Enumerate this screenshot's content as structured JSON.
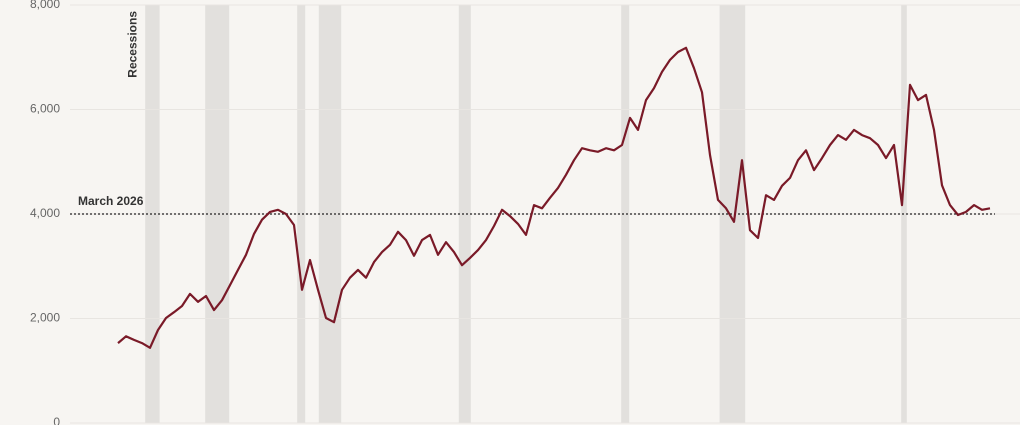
{
  "chart_data": {
    "type": "line",
    "categories": [
      null,
      null,
      null,
      null,
      null,
      null,
      null,
      null,
      null,
      null,
      null,
      null,
      null,
      null,
      null,
      null,
      null,
      null,
      null,
      null,
      null,
      null,
      null,
      null,
      null,
      null,
      null,
      null,
      null,
      null,
      null,
      null,
      null,
      null,
      null,
      null,
      null,
      null,
      null,
      null,
      null,
      null,
      null,
      null,
      null,
      null,
      null,
      null,
      null,
      null,
      null,
      null,
      null,
      null,
      null,
      null,
      null,
      null,
      null,
      null,
      null,
      null,
      null,
      null,
      null,
      null,
      null,
      null,
      null,
      null,
      null,
      null,
      null,
      null,
      null,
      null,
      null,
      null,
      null,
      null,
      null,
      null,
      null,
      null,
      null,
      null,
      null,
      null,
      null,
      null,
      null,
      null,
      null,
      null,
      null,
      null,
      null,
      null,
      null,
      null,
      null,
      null,
      null,
      null,
      null,
      null,
      null,
      null,
      null,
      null,
      null,
      null,
      null,
      null,
      null,
      null
    ],
    "series": [
      {
        "color": "#7a1a28",
        "values": [
          null,
          null,
          null,
          null,
          null,
          null,
          1530,
          1660,
          1590,
          1530,
          1440,
          1780,
          2010,
          2120,
          2240,
          2470,
          2320,
          2430,
          2160,
          2350,
          2640,
          2930,
          3220,
          3620,
          3890,
          4040,
          4080,
          4000,
          3790,
          2550,
          3120,
          2550,
          2010,
          1930,
          2550,
          2780,
          2930,
          2780,
          3080,
          3270,
          3410,
          3660,
          3500,
          3200,
          3500,
          3600,
          3220,
          3460,
          3270,
          3020,
          3160,
          3310,
          3500,
          3770,
          4080,
          3960,
          3810,
          3600,
          4170,
          4110,
          4310,
          4500,
          4750,
          5030,
          5260,
          5220,
          5190,
          5260,
          5220,
          5320,
          5840,
          5610,
          6180,
          6410,
          6720,
          6950,
          7100,
          7180,
          6790,
          6330,
          5130,
          4270,
          4110,
          3850,
          5030,
          3690,
          3540,
          4360,
          4270,
          4540,
          4690,
          5030,
          5220,
          4840,
          5070,
          5320,
          5510,
          5420,
          5610,
          5510,
          5450,
          5320,
          5070,
          5320,
          4170,
          6470,
          6180,
          6280,
          5610,
          4550,
          4170,
          3980,
          4040,
          4170,
          4080,
          4110
        ]
      }
    ],
    "ylim": [
      0,
      8000
    ],
    "yticks": [
      0,
      {
        "value": 2000,
        "label": "2,000"
      },
      {
        "value": 4000,
        "label": "4,000"
      },
      {
        "value": 6000,
        "label": "6,000"
      },
      {
        "value": 8000,
        "label": "8,000"
      }
    ],
    "grid": true,
    "reference_line": {
      "value": 4000,
      "label": "March 2026"
    },
    "recessions_label": "Recessions",
    "recession_color": "#e2e0dd",
    "recessions": [
      [
        9.4,
        11.2
      ],
      [
        16.9,
        19.9
      ],
      [
        28.4,
        29.4
      ],
      [
        31.1,
        33.9
      ],
      [
        48.6,
        50.1
      ],
      [
        68.9,
        69.9
      ],
      [
        81.2,
        84.4
      ],
      [
        103.9,
        104.6
      ]
    ]
  }
}
